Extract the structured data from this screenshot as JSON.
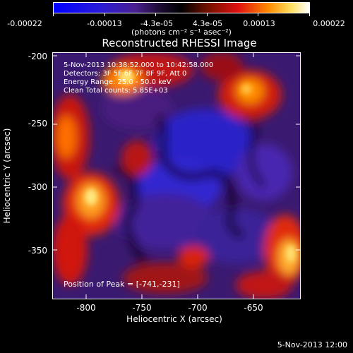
{
  "colorbar": {
    "labels": [
      "-0.00022",
      "-0.00013",
      "-4.3e-05",
      "4.3e-05",
      "0.00013",
      "0.00022"
    ],
    "units": "(photons cm⁻² s⁻¹ asec⁻²)"
  },
  "title": "Reconstructed RHESSI Image",
  "info": {
    "time_range": "5-Nov-2013 10:38:52.000 to 10:42:58.000",
    "detectors": "Detectors: 3F 5F 6F 7F 8F 9F, Att 0",
    "energy": "Energy Range: 25.0 - 50.0 keV",
    "method": "Clean    Total counts: 5.85E+03",
    "peak": "Position of Peak = [-741,-231]"
  },
  "x_axis": {
    "label": "Heliocentric X (arcsec)",
    "ticks": [
      "-800",
      "-750",
      "-700",
      "-650"
    ]
  },
  "y_axis": {
    "label": "Heliocentric Y (arcsec)",
    "ticks": [
      "-200",
      "-250",
      "-300",
      "-350"
    ]
  },
  "footer_date": "5-Nov-2013 12:00",
  "colors": {
    "low": "#1010ff",
    "mid": "#000000",
    "high": "#ffffff"
  }
}
